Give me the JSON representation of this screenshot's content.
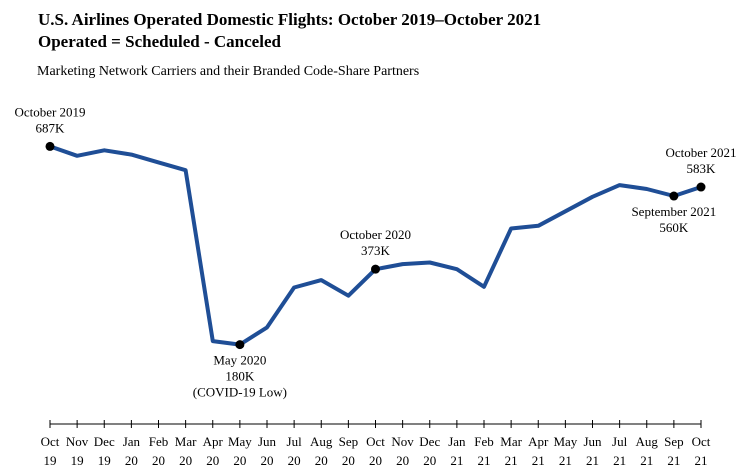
{
  "chart_data": {
    "type": "line",
    "title": "U.S. Airlines Operated Domestic Flights: October 2019–October 2021",
    "title_line2": "Operated = Scheduled - Canceled",
    "subtitle": "Marketing Network Carriers and their Branded Code-Share Partners",
    "x": [
      [
        "Oct",
        "19"
      ],
      [
        "Nov",
        "19"
      ],
      [
        "Dec",
        "19"
      ],
      [
        "Jan",
        "20"
      ],
      [
        "Feb",
        "20"
      ],
      [
        "Mar",
        "20"
      ],
      [
        "Apr",
        "20"
      ],
      [
        "May",
        "20"
      ],
      [
        "Jun",
        "20"
      ],
      [
        "Jul",
        "20"
      ],
      [
        "Aug",
        "20"
      ],
      [
        "Sep",
        "20"
      ],
      [
        "Oct",
        "20"
      ],
      [
        "Nov",
        "20"
      ],
      [
        "Dec",
        "20"
      ],
      [
        "Jan",
        "21"
      ],
      [
        "Feb",
        "21"
      ],
      [
        "Mar",
        "21"
      ],
      [
        "Apr",
        "21"
      ],
      [
        "May",
        "21"
      ],
      [
        "Jun",
        "21"
      ],
      [
        "Jul",
        "21"
      ],
      [
        "Aug",
        "21"
      ],
      [
        "Sep",
        "21"
      ],
      [
        "Oct",
        "21"
      ]
    ],
    "values": [
      687,
      663,
      677,
      666,
      646,
      626,
      189,
      180,
      224,
      326,
      345,
      305,
      373,
      386,
      390,
      373,
      328,
      477,
      484,
      521,
      558,
      588,
      578,
      560,
      583
    ],
    "ylim": [
      0,
      800
    ],
    "color": "#1f4e96",
    "grid": false,
    "annotations": [
      {
        "index": 0,
        "lines": [
          "October 2019",
          "687K"
        ],
        "position": "above"
      },
      {
        "index": 7,
        "lines": [
          "May 2020",
          "180K",
          "(COVID-19 Low)"
        ],
        "position": "below"
      },
      {
        "index": 12,
        "lines": [
          "October 2020",
          "373K"
        ],
        "position": "above"
      },
      {
        "index": 23,
        "lines": [
          "September 2021",
          "560K"
        ],
        "position": "below"
      },
      {
        "index": 24,
        "lines": [
          "October 2021",
          "583K"
        ],
        "position": "above"
      }
    ]
  }
}
